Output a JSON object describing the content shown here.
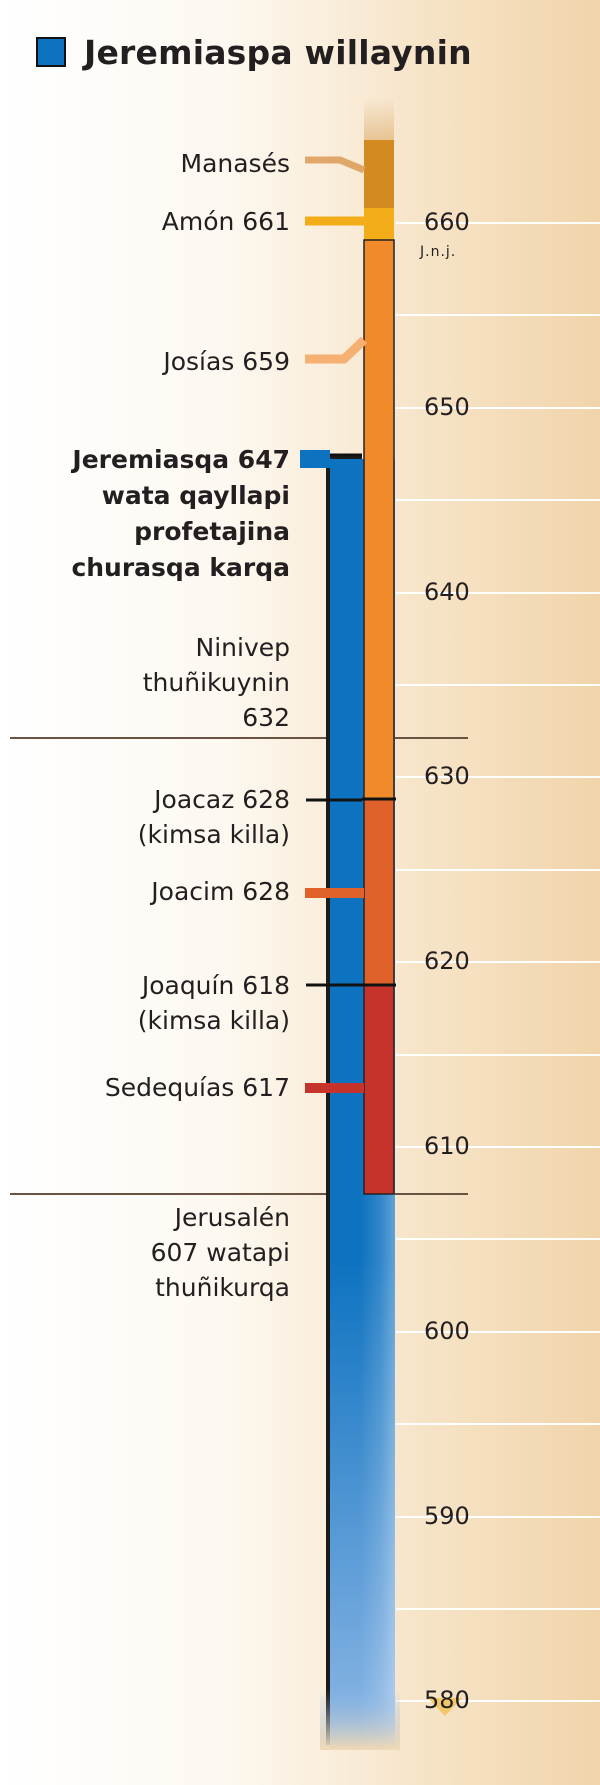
{
  "title": "Jeremiaspa willaynin",
  "colors": {
    "jeremiah": "#0d72c0",
    "manases": "#d38a21",
    "amon": "#f3ad19",
    "josias": "#f18a2a",
    "joacim": "#e0622a",
    "sedequias": "#c6332b"
  },
  "axis": {
    "unit": "J.n.j.",
    "ticks": [
      "660",
      "650",
      "640",
      "630",
      "620",
      "610",
      "600",
      "590",
      "580"
    ]
  },
  "labels": {
    "manases": "Manasés",
    "amon": "Amón 661",
    "josias": "Josías 659",
    "jeremiah_called": "Jeremiasqa 647\nwata qayllapi\nprofetajina\nchurasqa karqa",
    "nineveh": "Ninivep\nthuñikuynin\n632",
    "joacaz": "Joacaz 628\n(kimsa killa)",
    "joacim": "Joacim 628",
    "joaquin": "Joaquín 618\n(kimsa killa)",
    "sedequias": "Sedequías 617",
    "jerusalem": "Jerusalén\n607 watapi\nthuñikurqa"
  },
  "chart_data": {
    "type": "timeline",
    "title": "Jeremiaspa willaynin",
    "unit": "J.n.j.",
    "axis_range": [
      580,
      664
    ],
    "reigns": [
      {
        "name": "Manasés",
        "end": 661
      },
      {
        "name": "Amón",
        "start": 661,
        "end": 659
      },
      {
        "name": "Josías",
        "start": 659,
        "end": 628
      },
      {
        "name": "Joacaz",
        "start": 628,
        "duration": "kimsa killa"
      },
      {
        "name": "Joacim",
        "start": 628,
        "end": 618
      },
      {
        "name": "Joaquín",
        "start": 618,
        "duration": "kimsa killa"
      },
      {
        "name": "Sedequías",
        "start": 617,
        "end": 607
      }
    ],
    "prophet": {
      "name": "Jeremías",
      "called": 647,
      "continues_past": 607
    },
    "events": [
      {
        "name": "Ninivep thuñikuynin",
        "year": 632
      },
      {
        "name": "Jerusalén thuñikurqa",
        "year": 607
      }
    ]
  }
}
